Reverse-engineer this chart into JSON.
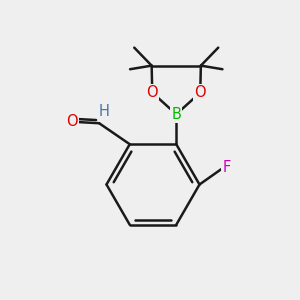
{
  "bg_color": "#efefef",
  "bond_color": "#1a1a1a",
  "bond_width": 1.8,
  "atom_colors": {
    "O": "#dd0000",
    "B": "#00bb00",
    "F": "#cc00bb",
    "H_aldehyde": "#4477aa",
    "O_aldehyde": "#dd0000"
  },
  "font_size": 10.5
}
